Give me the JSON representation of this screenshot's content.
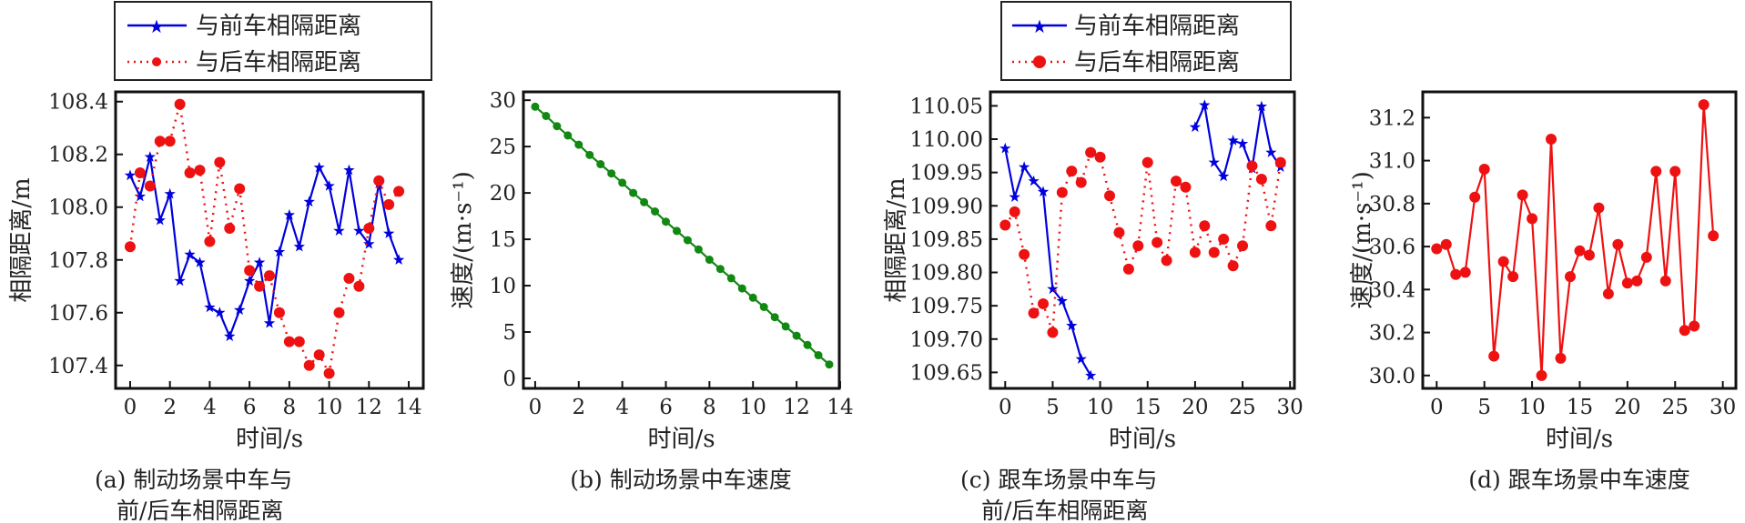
{
  "legend": {
    "front": "与前车相隔距离",
    "rear": "与后车相隔距离"
  },
  "colors": {
    "front": "#0000dd",
    "rear": "#ee1111",
    "speed_b": "#118811",
    "speed_d": "#ee1111"
  },
  "captions": {
    "a1": "(a) 制动场景中车与",
    "a2": "前/后车相隔距离",
    "b1": "(b) 制动场景中车速度",
    "c1": "(c) 跟车场景中车与",
    "c2": "前/后车相隔距离",
    "d1": "(d) 跟车场景中车速度"
  },
  "chart_data": [
    {
      "type": "line",
      "title": "(a) 制动场景中车与前/后车相隔距离",
      "xlabel": "时间/s",
      "ylabel": "相隔距离/m",
      "xlim": [
        -0.73,
        14.73
      ],
      "ylim": [
        107.313,
        108.437
      ],
      "xticks": [
        0,
        2,
        4,
        6,
        8,
        10,
        12,
        14
      ],
      "yticks": [
        107.4,
        107.6,
        107.8,
        108.0,
        108.2,
        108.4
      ],
      "ydecimals": 1,
      "legend": "top",
      "series": [
        {
          "name": "与前车相隔距离",
          "style": "solid-star",
          "x": [
            0,
            0.5,
            1,
            1.5,
            2,
            2.5,
            3,
            3.5,
            4,
            4.5,
            5,
            5.5,
            6,
            6.5,
            7,
            7.5,
            8,
            8.5,
            9,
            9.5,
            10,
            10.5,
            11,
            11.5,
            12,
            12.5,
            13,
            13.5
          ],
          "y": [
            108.12,
            108.04,
            108.19,
            107.95,
            108.05,
            107.72,
            107.82,
            107.79,
            107.62,
            107.6,
            107.51,
            107.61,
            107.72,
            107.79,
            107.56,
            107.83,
            107.97,
            107.85,
            108.02,
            108.15,
            108.08,
            107.91,
            108.14,
            107.91,
            107.86,
            108.09,
            107.9,
            107.8
          ]
        },
        {
          "name": "与后车相隔距离",
          "style": "dotted-dot",
          "x": [
            0,
            0.5,
            1,
            1.5,
            2,
            2.5,
            3,
            3.5,
            4,
            4.5,
            5,
            5.5,
            6,
            6.5,
            7,
            7.5,
            8,
            8.5,
            9,
            9.5,
            10,
            10.5,
            11,
            11.5,
            12,
            12.5,
            13,
            13.5
          ],
          "y": [
            107.85,
            108.13,
            108.08,
            108.25,
            108.25,
            108.39,
            108.13,
            108.14,
            107.87,
            108.17,
            107.92,
            108.07,
            107.76,
            107.7,
            107.74,
            107.6,
            107.49,
            107.49,
            107.4,
            107.44,
            107.37,
            107.6,
            107.73,
            107.7,
            107.92,
            108.1,
            108.01,
            108.06
          ]
        }
      ]
    },
    {
      "type": "line",
      "title": "(b) 制动场景中车速度",
      "xlabel": "时间/s",
      "ylabel": "速度/(m·s⁻¹)",
      "xlim": [
        -0.54,
        13.96
      ],
      "ylim": [
        -1.08,
        30.9
      ],
      "xticks": [
        0,
        2,
        4,
        6,
        8,
        10,
        12,
        14
      ],
      "yticks": [
        0,
        5,
        10,
        15,
        20,
        25,
        30
      ],
      "ydecimals": 0,
      "series": [
        {
          "name": "速度",
          "style": "solid-dot-green",
          "x": [
            0,
            0.5,
            1,
            1.5,
            2,
            2.5,
            3,
            3.5,
            4,
            4.5,
            5,
            5.5,
            6,
            6.5,
            7,
            7.5,
            8,
            8.5,
            9,
            9.5,
            10,
            10.5,
            11,
            11.5,
            12,
            12.5,
            13,
            13.5
          ],
          "y": [
            29.3,
            28.3,
            27.2,
            26.2,
            25.2,
            24.1,
            23.1,
            22.1,
            21.1,
            20.0,
            19.0,
            18.0,
            16.9,
            15.9,
            14.9,
            13.9,
            12.8,
            11.8,
            10.8,
            9.7,
            8.7,
            7.7,
            6.6,
            5.6,
            4.6,
            3.6,
            2.5,
            1.5
          ]
        }
      ]
    },
    {
      "type": "line",
      "title": "(c) 跟车场景中车与前/后车相隔距离",
      "xlabel": "时间/s",
      "ylabel": "相隔距离/m",
      "xlim": [
        -1.56,
        30.46
      ],
      "ylim": [
        109.626,
        110.071
      ],
      "xticks": [
        0,
        5,
        10,
        15,
        20,
        25,
        30
      ],
      "yticks": [
        109.65,
        109.7,
        109.75,
        109.8,
        109.85,
        109.9,
        109.95,
        110.0,
        110.05
      ],
      "ydecimals": 2,
      "legend": "top",
      "series": [
        {
          "name": "与前车相隔距离",
          "style": "solid-star",
          "segments": [
            {
              "x": [
                0,
                1,
                2,
                3,
                4,
                5,
                6,
                7,
                8,
                9
              ],
              "y": [
                109.986,
                109.913,
                109.958,
                109.937,
                109.921,
                109.775,
                109.757,
                109.72,
                109.67,
                109.645
              ]
            },
            {
              "x": [
                20,
                21,
                22,
                23,
                24,
                25,
                26,
                27,
                28,
                29
              ],
              "y": [
                110.018,
                110.051,
                109.965,
                109.944,
                109.998,
                109.993,
                109.956,
                110.049,
                109.98,
                109.958
              ]
            }
          ]
        },
        {
          "name": "与后车相隔距离",
          "style": "dotted-dot",
          "x": [
            0,
            1,
            2,
            3,
            4,
            5,
            6,
            7,
            8,
            9,
            10,
            11,
            12,
            13,
            14,
            15,
            16,
            17,
            18,
            19,
            20,
            21,
            22,
            23,
            24,
            25,
            26,
            27,
            28,
            29
          ],
          "y": [
            109.871,
            109.891,
            109.827,
            109.739,
            109.753,
            109.71,
            109.92,
            109.952,
            109.935,
            109.98,
            109.973,
            109.915,
            109.86,
            109.805,
            109.84,
            109.965,
            109.845,
            109.818,
            109.937,
            109.928,
            109.83,
            109.87,
            109.83,
            109.85,
            109.81,
            109.84,
            109.96,
            109.94,
            109.87,
            109.965
          ]
        }
      ]
    },
    {
      "type": "line",
      "title": "(d) 跟车场景中车速度",
      "xlabel": "时间/s",
      "ylabel": "速度/(m·s⁻¹)",
      "xlim": [
        -1.46,
        31.37
      ],
      "ylim": [
        29.94,
        31.32
      ],
      "xticks": [
        0,
        5,
        10,
        15,
        20,
        25,
        30
      ],
      "yticks": [
        30.0,
        30.2,
        30.4,
        30.6,
        30.8,
        31.0,
        31.2
      ],
      "ydecimals": 1,
      "series": [
        {
          "name": "速度",
          "style": "solid-dot-red",
          "x": [
            0,
            1,
            2,
            3,
            4,
            5,
            6,
            7,
            8,
            9,
            10,
            11,
            12,
            13,
            14,
            15,
            16,
            17,
            18,
            19,
            20,
            21,
            22,
            23,
            24,
            25,
            26,
            27,
            28,
            29
          ],
          "y": [
            30.59,
            30.61,
            30.47,
            30.48,
            30.83,
            30.96,
            30.09,
            30.53,
            30.46,
            30.84,
            30.73,
            30.0,
            31.1,
            30.08,
            30.46,
            30.58,
            30.56,
            30.78,
            30.38,
            30.61,
            30.43,
            30.44,
            30.55,
            30.95,
            30.44,
            30.95,
            30.21,
            30.23,
            31.26,
            30.65
          ]
        }
      ]
    }
  ]
}
